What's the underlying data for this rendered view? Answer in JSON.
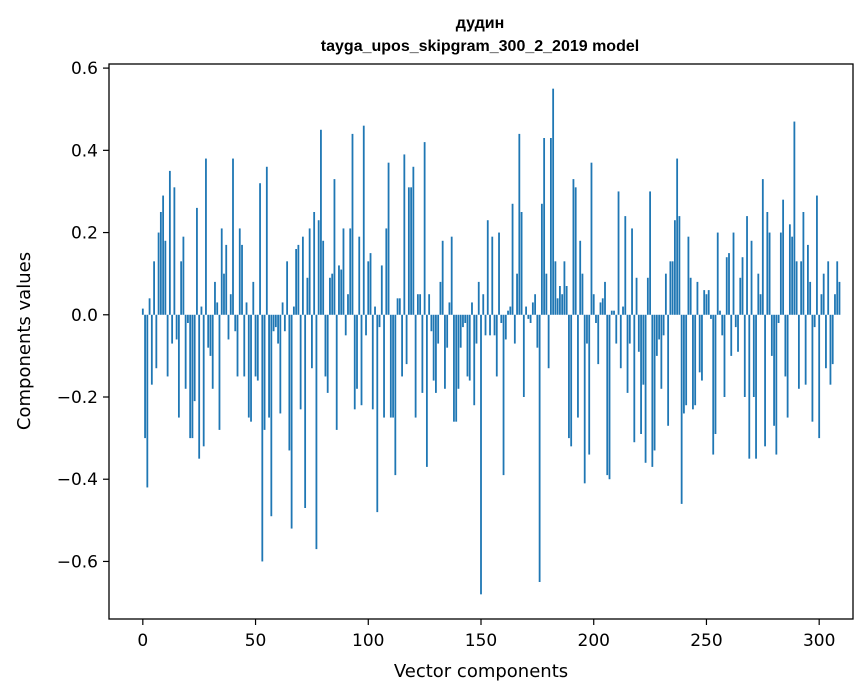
{
  "chart_data": {
    "type": "bar",
    "title": "дудин",
    "subtitle": "tayga_upos_skipgram_300_2_2019 model",
    "xlabel": "Vector components",
    "ylabel": "Components values",
    "xlim": [
      -15,
      315
    ],
    "ylim": [
      -0.74,
      0.61
    ],
    "xticks": [
      0,
      50,
      100,
      150,
      200,
      250,
      300
    ],
    "xtick_labels": [
      "0",
      "50",
      "100",
      "150",
      "200",
      "250",
      "300"
    ],
    "yticks": [
      -0.6,
      -0.4,
      -0.2,
      0.0,
      0.2,
      0.4,
      0.6
    ],
    "ytick_labels": [
      "−0.6",
      "−0.4",
      "−0.2",
      "0.0",
      "0.2",
      "0.4",
      "0.6"
    ],
    "grid": false,
    "bar_color": "#1f77b4",
    "values": [
      0.015,
      -0.3,
      -0.42,
      0.04,
      -0.17,
      0.13,
      -0.13,
      0.2,
      0.25,
      0.29,
      0.18,
      -0.15,
      0.35,
      -0.07,
      0.31,
      -0.06,
      -0.25,
      0.13,
      0.19,
      -0.18,
      -0.02,
      -0.3,
      -0.3,
      -0.21,
      0.26,
      -0.35,
      0.02,
      -0.32,
      0.38,
      -0.08,
      -0.1,
      -0.18,
      0.08,
      0.03,
      -0.28,
      0.21,
      0.1,
      0.17,
      -0.06,
      0.05,
      0.38,
      -0.04,
      -0.15,
      0.21,
      0.17,
      -0.15,
      0.03,
      -0.25,
      -0.26,
      0.08,
      -0.15,
      -0.16,
      0.32,
      -0.6,
      -0.28,
      0.36,
      -0.25,
      -0.49,
      -0.04,
      -0.03,
      -0.07,
      -0.24,
      0.03,
      -0.04,
      0.13,
      -0.33,
      -0.52,
      0.02,
      0.16,
      0.17,
      -0.23,
      0.19,
      -0.47,
      0.09,
      0.21,
      -0.13,
      0.25,
      -0.57,
      0.23,
      0.45,
      0.18,
      -0.15,
      -0.19,
      0.09,
      0.1,
      0.33,
      -0.28,
      0.12,
      0.11,
      0.21,
      -0.05,
      0.05,
      0.21,
      0.44,
      -0.23,
      -0.18,
      0.19,
      -0.22,
      0.46,
      -0.05,
      0.13,
      0.15,
      -0.23,
      0.02,
      -0.48,
      -0.03,
      0.12,
      -0.25,
      0.21,
      0.37,
      -0.25,
      -0.25,
      -0.39,
      0.04,
      0.04,
      -0.15,
      0.39,
      -0.12,
      0.31,
      0.31,
      0.36,
      -0.25,
      0.05,
      0.05,
      -0.19,
      0.42,
      -0.37,
      0.05,
      -0.04,
      -0.16,
      -0.19,
      -0.07,
      0.08,
      0.18,
      -0.18,
      -0.08,
      0.03,
      0.19,
      -0.26,
      -0.26,
      -0.18,
      -0.08,
      -0.03,
      -0.02,
      -0.15,
      -0.16,
      0.03,
      -0.22,
      -0.07,
      0.08,
      -0.68,
      0.05,
      -0.05,
      0.23,
      -0.05,
      0.19,
      -0.05,
      -0.15,
      0.2,
      -0.02,
      -0.39,
      -0.06,
      0.01,
      0.02,
      0.27,
      -0.07,
      0.1,
      0.44,
      0.25,
      -0.2,
      0.02,
      -0.01,
      -0.02,
      0.03,
      0.05,
      -0.08,
      -0.65,
      0.27,
      0.43,
      0.1,
      -0.13,
      0.43,
      0.55,
      0.13,
      0.04,
      0.07,
      0.05,
      0.13,
      0.07,
      -0.3,
      -0.32,
      0.33,
      0.31,
      -0.25,
      0.18,
      0.1,
      -0.41,
      -0.07,
      -0.34,
      0.37,
      0.05,
      -0.02,
      -0.12,
      0.03,
      0.04,
      0.08,
      -0.39,
      -0.4,
      0.01,
      0.01,
      -0.07,
      0.3,
      -0.13,
      0.02,
      0.24,
      -0.19,
      -0.07,
      0.21,
      -0.31,
      0.09,
      -0.09,
      -0.29,
      -0.17,
      -0.36,
      0.09,
      0.3,
      -0.37,
      -0.33,
      -0.1,
      -0.06,
      -0.18,
      -0.05,
      0.1,
      -0.27,
      0.13,
      0.13,
      0.23,
      0.38,
      0.24,
      -0.46,
      -0.24,
      -0.22,
      0.19,
      0.09,
      -0.23,
      -0.22,
      0.08,
      -0.14,
      -0.16,
      0.06,
      0.05,
      0.06,
      -0.01,
      -0.34,
      -0.29,
      0.2,
      0.01,
      -0.05,
      -0.2,
      0.14,
      0.15,
      -0.1,
      0.2,
      -0.03,
      -0.09,
      0.09,
      0.14,
      -0.2,
      0.24,
      -0.35,
      0.18,
      -0.2,
      -0.35,
      0.1,
      0.05,
      0.33,
      -0.32,
      0.25,
      0.2,
      -0.1,
      -0.27,
      -0.34,
      -0.02,
      0.2,
      0.28,
      -0.15,
      -0.25,
      0.22,
      0.19,
      0.47,
      0.13,
      -0.18,
      0.13,
      0.25,
      -0.17,
      0.17,
      0.08,
      -0.26,
      -0.03,
      0.29,
      -0.3,
      0.05,
      0.1,
      -0.13,
      0.13,
      -0.17,
      -0.12,
      0.05,
      0.13,
      0.08
    ]
  }
}
